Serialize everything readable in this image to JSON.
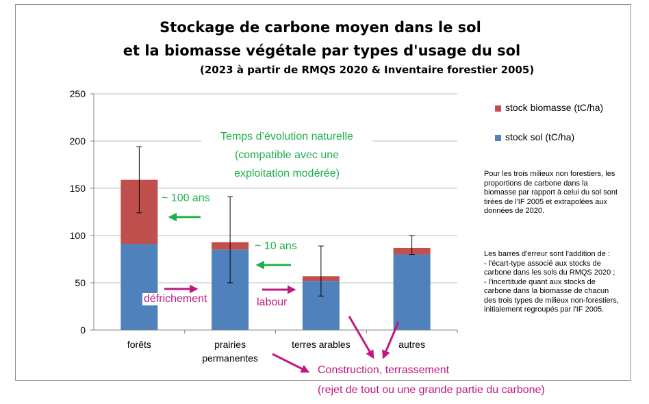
{
  "title": {
    "line1": "Stockage de carbone moyen dans le sol",
    "line2": "et la biomasse végétale par types d'usage du sol",
    "subtitle": "(2023 à partir de RMQS 2020 & Inventaire forestier 2005)"
  },
  "legend": {
    "biomass": "stock biomasse (tC/ha)",
    "soil": "stock sol (tC/ha)"
  },
  "notes": {
    "para1": "Pour les trois milieux non forestiers, les proportions de carbone dans la biomasse par rapport à celui du sol sont tirées de l'IF 2005 et extrapolées aux données de 2020.",
    "para2": "Les barres d'erreur sont l'addition de :\n- l'écart-type associé aux stocks de carbone dans les sols du RMQS 2020 ;\n- l'incertitude quant aux stocks de carbone dans la biomasse de chacun des trois types de milieux non-forestiers, initialement regroupés  par l'IF 2005."
  },
  "annotations": {
    "natural_time": "Temps d’évolution naturelle\n(compatible avec une\nexploitation modérée)",
    "hundred_years": "~ 100 ans",
    "ten_years": "~ 10 ans",
    "clearing": "défrichement",
    "tillage": "labour",
    "construction": "Construction, terrassement",
    "construction_note": "(rejet de tout ou une grande partie du carbone)"
  },
  "colors": {
    "soil": "#4f81bd",
    "biomass": "#c0504d",
    "green": "#1faf4b",
    "magenta": "#c0187f",
    "grid": "#bfbfbf"
  },
  "chart_data": {
    "type": "bar",
    "stacked": true,
    "categories": [
      "forêts",
      "prairies\npermanentes",
      "terres arables",
      "autres"
    ],
    "series": [
      {
        "name": "stock sol (tC/ha)",
        "values": [
          91,
          85,
          52,
          80
        ]
      },
      {
        "name": "stock biomasse (tC/ha)",
        "values": [
          68,
          8,
          5,
          7
        ]
      }
    ],
    "error_bars": [
      {
        "low": 124,
        "high": 194
      },
      {
        "low": 50,
        "high": 141
      },
      {
        "low": 36,
        "high": 89
      },
      {
        "low": 80,
        "high": 100
      }
    ],
    "ylim": [
      0,
      250
    ],
    "yticks": [
      0,
      50,
      100,
      150,
      200,
      250
    ],
    "grid": true,
    "legend_position": "right"
  }
}
